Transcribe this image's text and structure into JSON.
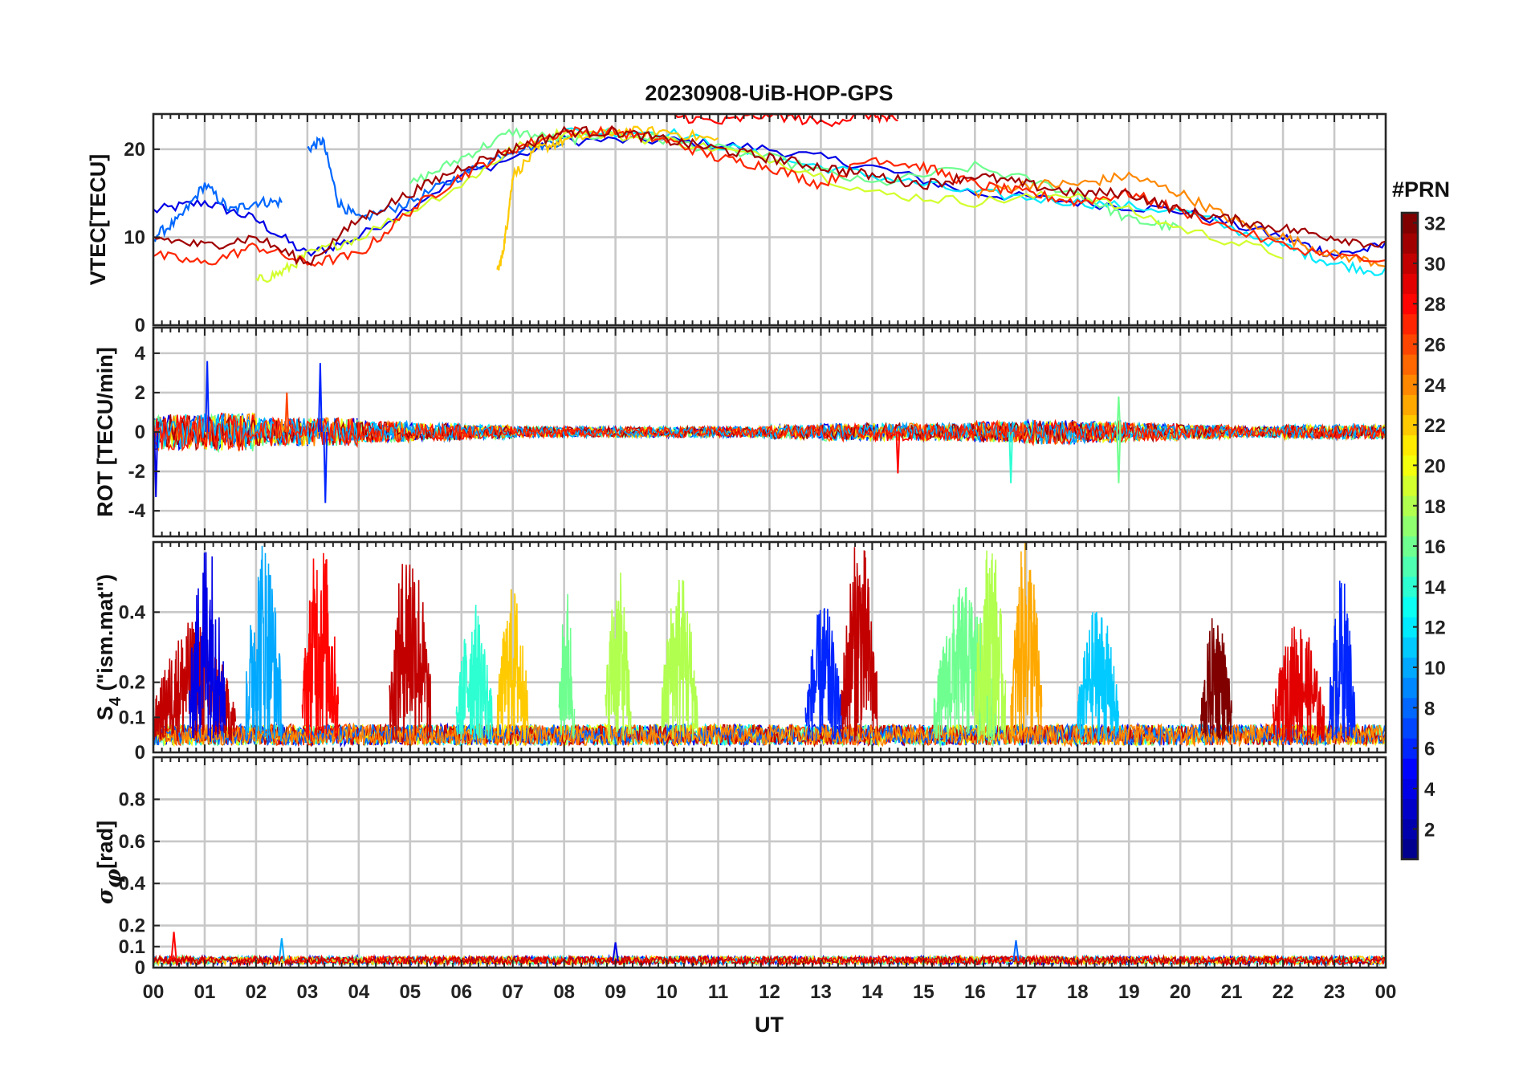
{
  "figure": {
    "title": "20230908-UiB-HOP-GPS",
    "xlabel": "UT",
    "x_tick_labels": [
      "00",
      "01",
      "02",
      "03",
      "04",
      "05",
      "06",
      "07",
      "08",
      "09",
      "10",
      "11",
      "12",
      "13",
      "14",
      "15",
      "16",
      "17",
      "18",
      "19",
      "20",
      "21",
      "22",
      "23",
      "00"
    ],
    "colorbar": {
      "label": "#PRN",
      "range": [
        1,
        32
      ],
      "tick_labels": [
        "2",
        "4",
        "6",
        "8",
        "10",
        "12",
        "14",
        "16",
        "18",
        "20",
        "22",
        "24",
        "26",
        "28",
        "30",
        "32"
      ],
      "colormap": "jet",
      "colors": [
        "#00008f",
        "#0000ff",
        "#0080ff",
        "#00ffff",
        "#80ff80",
        "#ffff00",
        "#ff8000",
        "#ff0000",
        "#800000"
      ]
    }
  },
  "chart_data": [
    {
      "type": "line",
      "panel": "vtec",
      "ylabel": "VTEC[TECU]",
      "ylim": [
        0,
        24
      ],
      "yticks": [
        0,
        10,
        20
      ],
      "x_unit": "hours UT",
      "xlim": [
        0,
        24
      ],
      "grid": true,
      "description_of_series": "one line per GPS PRN colored by PRN",
      "series": [
        {
          "prn": 4,
          "x": [
            0,
            1,
            2,
            3,
            4,
            6,
            8,
            10,
            12,
            14,
            16,
            18,
            20,
            22,
            23,
            24
          ],
          "values": [
            13,
            14,
            12,
            8,
            10,
            17,
            21,
            21,
            20,
            18,
            15,
            14,
            13,
            10,
            8,
            9
          ]
        },
        {
          "prn": 8,
          "x": [
            0,
            0.5,
            1,
            1.5,
            2,
            2.5
          ],
          "values": [
            10,
            12,
            16,
            13,
            14,
            14
          ]
        },
        {
          "prn": 8,
          "x": [
            3,
            3.3,
            3.6,
            4,
            5,
            6,
            7,
            8
          ],
          "values": [
            20,
            21,
            14,
            12,
            14,
            17,
            20,
            21
          ]
        },
        {
          "prn": 12,
          "x": [
            8,
            10,
            12,
            14,
            16,
            18,
            20,
            22,
            23,
            24
          ],
          "values": [
            22,
            22,
            19,
            17,
            15,
            14,
            13,
            9,
            7,
            6
          ]
        },
        {
          "prn": 16,
          "x": [
            5,
            6,
            7,
            8,
            9,
            10,
            12,
            14,
            16,
            18,
            19,
            20
          ],
          "values": [
            16,
            19,
            22,
            21,
            22,
            21,
            19,
            16,
            18,
            15,
            12,
            11
          ]
        },
        {
          "prn": 19,
          "x": [
            2,
            2.5,
            3,
            4,
            6,
            7,
            8,
            10,
            12,
            14,
            16,
            18,
            20,
            22
          ],
          "values": [
            5,
            6,
            8,
            10,
            16,
            20,
            22,
            21,
            19,
            15,
            14,
            15,
            11,
            8
          ]
        },
        {
          "prn": 22,
          "x": [
            6.7,
            6.8,
            6.9,
            7,
            7.5,
            8,
            9,
            10,
            11
          ],
          "values": [
            6,
            8,
            12,
            17,
            20,
            21,
            22,
            22,
            21
          ]
        },
        {
          "prn": 24,
          "x": [
            16,
            17,
            18,
            19,
            20,
            21,
            22,
            23,
            24
          ],
          "values": [
            15,
            16,
            16,
            17,
            15,
            12,
            10,
            8,
            7
          ]
        },
        {
          "prn": 27,
          "x": [
            0,
            1,
            2,
            3,
            4,
            5,
            6,
            7,
            8,
            9,
            10,
            11,
            12,
            13,
            14,
            15,
            16,
            17,
            18,
            19,
            20,
            22,
            24
          ],
          "values": [
            8,
            7,
            9,
            7,
            8,
            13,
            17,
            20,
            22,
            22,
            21,
            19,
            18,
            16,
            19,
            18,
            16,
            15,
            14,
            15,
            13,
            9,
            7
          ]
        },
        {
          "prn": 28,
          "x": [
            10,
            11,
            12,
            13,
            14,
            14.5
          ],
          "values": [
            24,
            23,
            24,
            23,
            24,
            23
          ]
        },
        {
          "prn": 31,
          "x": [
            0,
            1,
            2,
            3,
            4,
            5,
            6,
            7,
            8,
            9,
            10,
            11,
            12,
            13,
            14,
            15,
            16,
            17,
            18,
            19,
            20,
            21,
            22,
            23,
            24
          ],
          "values": [
            10,
            9,
            10,
            7,
            12,
            15,
            18,
            20,
            22,
            22,
            21,
            20,
            19,
            18,
            17,
            16,
            17,
            16,
            15,
            15,
            13,
            12,
            11,
            10,
            9
          ]
        }
      ]
    },
    {
      "type": "line",
      "panel": "rot",
      "ylabel": "ROT [TECU/min]",
      "ylim": [
        -5.3,
        5.3
      ],
      "yticks": [
        -4,
        -2,
        0,
        2,
        4
      ],
      "x_unit": "hours UT",
      "xlim": [
        0,
        24
      ],
      "grid": true,
      "description_of_series": "rate of TEC per PRN, mostly within ±1 TECU/min",
      "noise_amplitude_by_hour": [
        1.0,
        1.1,
        0.8,
        0.8,
        0.6,
        0.5,
        0.4,
        0.3,
        0.3,
        0.3,
        0.3,
        0.3,
        0.4,
        0.5,
        0.5,
        0.5,
        0.6,
        0.7,
        0.6,
        0.5,
        0.4,
        0.3,
        0.4,
        0.4,
        0.4
      ],
      "spikes": [
        {
          "x": 1.05,
          "y": 3.6,
          "prn": 6
        },
        {
          "x": 3.25,
          "y": 3.5,
          "prn": 6
        },
        {
          "x": 3.35,
          "y": -3.6,
          "prn": 6
        },
        {
          "x": 0.05,
          "y": -3.3,
          "prn": 4
        },
        {
          "x": 2.6,
          "y": 2.0,
          "prn": 26
        },
        {
          "x": 14.5,
          "y": -2.1,
          "prn": 28
        },
        {
          "x": 16.7,
          "y": -2.6,
          "prn": 14
        },
        {
          "x": 18.8,
          "y": -2.6,
          "prn": 16
        },
        {
          "x": 18.8,
          "y": 1.8,
          "prn": 16
        }
      ]
    },
    {
      "type": "line",
      "panel": "s4",
      "ylabel": "S4 (\"ism.mat\")",
      "ylabel_main": "S",
      "ylabel_sub": "4",
      "ylabel_rest": " (\"ism.mat\")",
      "ylim": [
        0,
        0.6
      ],
      "yticks": [
        0,
        0.1,
        0.2,
        0.4
      ],
      "x_unit": "hours UT",
      "xlim": [
        0,
        24
      ],
      "grid": true,
      "description_of_series": "amplitude scintillation index per PRN",
      "baseline": 0.05,
      "bursts": [
        {
          "x0": 0.0,
          "x1": 1.6,
          "peak": 0.35,
          "prn": 30
        },
        {
          "x0": 0.7,
          "x1": 1.4,
          "peak": 0.6,
          "prn": 4
        },
        {
          "x0": 1.8,
          "x1": 2.5,
          "peak": 0.6,
          "prn": 10
        },
        {
          "x0": 2.9,
          "x1": 3.6,
          "peak": 0.6,
          "prn": 28
        },
        {
          "x0": 4.6,
          "x1": 5.4,
          "peak": 0.6,
          "prn": 30
        },
        {
          "x0": 5.9,
          "x1": 6.6,
          "peak": 0.4,
          "prn": 14
        },
        {
          "x0": 6.7,
          "x1": 7.3,
          "peak": 0.45,
          "prn": 22
        },
        {
          "x0": 7.9,
          "x1": 8.2,
          "peak": 0.45,
          "prn": 16
        },
        {
          "x0": 8.8,
          "x1": 9.3,
          "peak": 0.5,
          "prn": 18
        },
        {
          "x0": 9.9,
          "x1": 10.6,
          "peak": 0.5,
          "prn": 18
        },
        {
          "x0": 12.7,
          "x1": 13.4,
          "peak": 0.4,
          "prn": 6
        },
        {
          "x0": 13.4,
          "x1": 14.1,
          "peak": 0.6,
          "prn": 30
        },
        {
          "x0": 15.2,
          "x1": 16.4,
          "peak": 0.45,
          "prn": 16
        },
        {
          "x0": 16.0,
          "x1": 16.6,
          "peak": 0.6,
          "prn": 18
        },
        {
          "x0": 16.7,
          "x1": 17.3,
          "peak": 0.6,
          "prn": 23
        },
        {
          "x0": 18.0,
          "x1": 18.8,
          "peak": 0.4,
          "prn": 11
        },
        {
          "x0": 20.4,
          "x1": 21.0,
          "peak": 0.38,
          "prn": 32
        },
        {
          "x0": 21.8,
          "x1": 22.8,
          "peak": 0.35,
          "prn": 29
        },
        {
          "x0": 22.9,
          "x1": 23.4,
          "peak": 0.48,
          "prn": 6
        }
      ]
    },
    {
      "type": "line",
      "panel": "sigma_phi",
      "ylabel": "σφ [rad]",
      "ylabel_main": "σ",
      "ylabel_sub": "φ",
      "ylabel_rest": "[rad]",
      "ylim": [
        0,
        1.0
      ],
      "yticks": [
        0,
        0.1,
        0.2,
        0.4,
        0.6,
        0.8
      ],
      "x_unit": "hours UT",
      "xlim": [
        0,
        24
      ],
      "grid": true,
      "description_of_series": "phase scintillation index per PRN, low everywhere (~0.02–0.1)",
      "baseline": 0.03,
      "peaks": [
        {
          "x": 0.4,
          "y": 0.17,
          "prn": 28
        },
        {
          "x": 2.5,
          "y": 0.14,
          "prn": 10
        },
        {
          "x": 9.0,
          "y": 0.12,
          "prn": 4
        },
        {
          "x": 16.8,
          "y": 0.13,
          "prn": 8
        }
      ]
    }
  ]
}
